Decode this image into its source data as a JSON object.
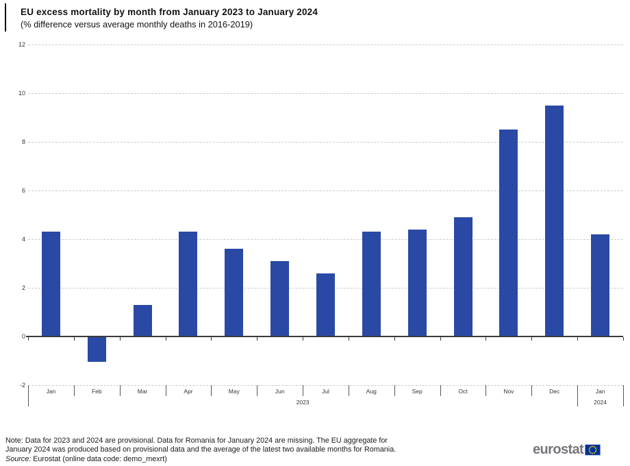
{
  "chart_data": {
    "type": "bar",
    "title": "EU excess mortality by month from January 2023 to January 2024",
    "subtitle": "(% difference versus average monthly deaths in 2016-2019)",
    "categories": [
      "Jan",
      "Feb",
      "Mar",
      "Apr",
      "May",
      "Jun",
      "Jul",
      "Aug",
      "Sep",
      "Oct",
      "Nov",
      "Dec",
      "Jan"
    ],
    "year_row": [
      {
        "label": "2023",
        "span": [
          0,
          12
        ]
      },
      {
        "label": "2024",
        "span": [
          12,
          13
        ]
      }
    ],
    "values": [
      4.3,
      -1.0,
      1.3,
      4.3,
      3.6,
      3.1,
      2.6,
      4.3,
      4.4,
      4.9,
      8.5,
      9.5,
      4.2
    ],
    "ylim": [
      -2,
      12
    ],
    "yticks": [
      12,
      10,
      8,
      6,
      4,
      2,
      0,
      -2
    ],
    "grid": "horizontal-dotted",
    "legend": "none",
    "bar_color": "#2a49a5"
  },
  "footer": {
    "note_line1": "Note: Data for 2023 and 2024 are provisional. Data for Romania for January 2024 are missing. The EU aggregate for",
    "note_line2": "January 2024 was produced based on provisional data and the average of the latest two available months for Romania.",
    "source_prefix": "Source:",
    "source_text": " Eurostat (online data code: demo_mexrt)",
    "logo_text": "eurostat"
  },
  "colors": {
    "bar": "#2a49a5",
    "gridline": "#cbcbcb",
    "axis": "#3a3a3a",
    "text": "#1a1a1a",
    "logo_gray": "#75757b",
    "eu_flag_blue": "#003399",
    "eu_flag_stars": "#ffcc00"
  }
}
